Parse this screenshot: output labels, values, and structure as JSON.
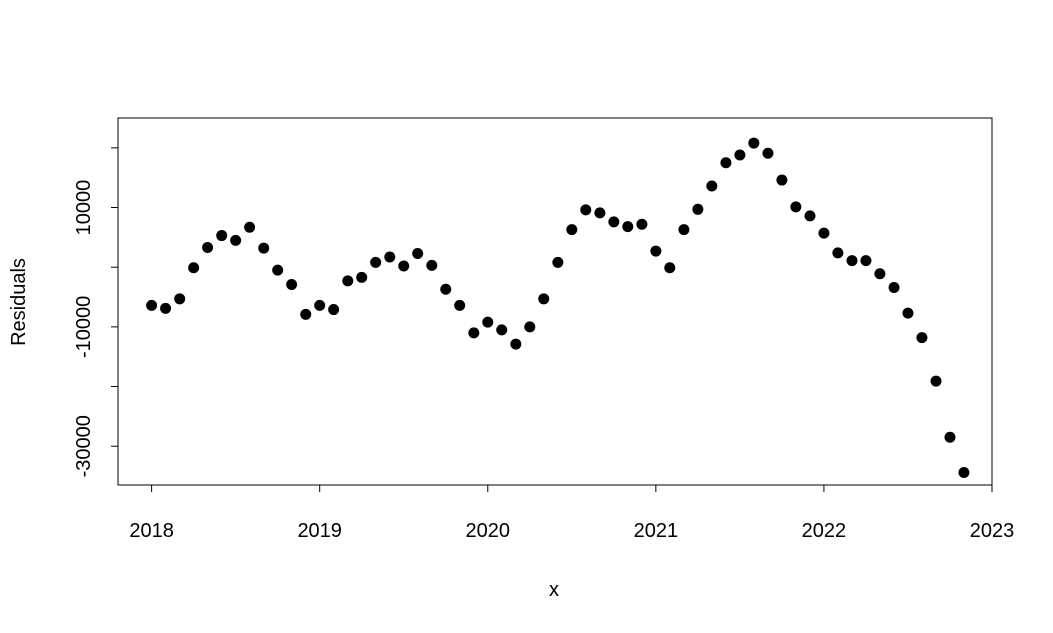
{
  "chart_data": {
    "type": "scatter",
    "title": "",
    "xlabel": "x",
    "ylabel": "Residuals",
    "xlim": [
      2017.8,
      2023.0
    ],
    "ylim": [
      -36500,
      25000
    ],
    "xticks": [
      2018,
      2019,
      2020,
      2021,
      2022,
      2023
    ],
    "yticks": [
      -30000,
      -20000,
      -10000,
      0,
      10000,
      20000
    ],
    "ytick_labels_shown": [
      -30000,
      -10000,
      10000
    ],
    "grid": false,
    "legend": "none",
    "marker_color": "#000000",
    "series": [
      {
        "x": [
          2018.0,
          2018.083,
          2018.167,
          2018.25,
          2018.333,
          2018.417,
          2018.5,
          2018.583,
          2018.667,
          2018.75,
          2018.833,
          2018.917,
          2019.0,
          2019.083,
          2019.167,
          2019.25,
          2019.333,
          2019.417,
          2019.5,
          2019.583,
          2019.667,
          2019.75,
          2019.833,
          2019.917,
          2020.0,
          2020.083,
          2020.167,
          2020.25,
          2020.333,
          2020.417,
          2020.5,
          2020.583,
          2020.667,
          2020.75,
          2020.833,
          2020.917,
          2021.0,
          2021.083,
          2021.167,
          2021.25,
          2021.333,
          2021.417,
          2021.5,
          2021.583,
          2021.667,
          2021.75,
          2021.833,
          2021.917,
          2022.0,
          2022.083,
          2022.167,
          2022.25,
          2022.333,
          2022.417,
          2022.5,
          2022.583,
          2022.667,
          2022.75,
          2022.833
        ],
        "y": [
          -6400,
          -6900,
          -5300,
          -100,
          3300,
          5300,
          4500,
          6700,
          3200,
          -500,
          -2900,
          -7900,
          -6400,
          -7100,
          -2300,
          -1700,
          800,
          1700,
          200,
          2300,
          300,
          -3700,
          -6400,
          -11000,
          -9200,
          -10500,
          -12900,
          -10000,
          -5300,
          800,
          6300,
          9600,
          9100,
          7600,
          6800,
          7200,
          2700,
          -100,
          6300,
          9700,
          13600,
          17500,
          18800,
          20800,
          19100,
          14600,
          10100,
          8600,
          5700,
          2400,
          1100,
          1100,
          -1100,
          -3400,
          -7700,
          -11800,
          -19100,
          -28500,
          -34400
        ]
      }
    ]
  }
}
